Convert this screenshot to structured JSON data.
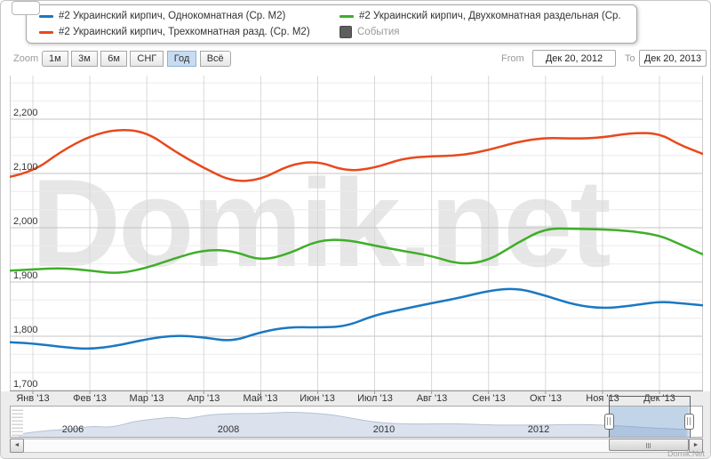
{
  "watermark": "Domik.net",
  "credit": "Domik.Net",
  "legend": {
    "items": [
      {
        "label": "#2 Украинский кирпич, Однокомнатная (Ср. М2)",
        "color": "#1a78c2",
        "type": "line"
      },
      {
        "label": "#2 Украинский кирпич, Двухкомнатная раздельная (Ср. М2)",
        "color": "#3fae29",
        "type": "line"
      },
      {
        "label": "#2 Украинский кирпич, Трехкомнатная разд. (Ср. М2)",
        "color": "#e8491c",
        "type": "line"
      },
      {
        "label": "События",
        "color": "#5e5e5e",
        "type": "box"
      }
    ]
  },
  "toolbar": {
    "zoom_label": "Zoom",
    "buttons": [
      "1м",
      "3м",
      "6м",
      "СНГ",
      "Год",
      "Всё"
    ],
    "selected_button": "Год",
    "from_label": "From",
    "from_value": "Дек 20, 2012",
    "to_label": "To",
    "to_value": "Дек 20, 2013"
  },
  "chart_data": {
    "type": "line",
    "title": "",
    "xlabel": "",
    "ylabel": "",
    "ylim": [
      1700,
      2280
    ],
    "grid": true,
    "legend_position": "top",
    "x_tick_labels": [
      "Янв '13",
      "Фев '13",
      "Мар '13",
      "Апр '13",
      "Май '13",
      "Июн '13",
      "Июл '13",
      "Авг '13",
      "Сен '13",
      "Окт '13",
      "Ноя '13",
      "Дек '13"
    ],
    "y_ticks": [
      {
        "value": 1700,
        "label": "1,700"
      },
      {
        "value": 1800,
        "label": "1,800"
      },
      {
        "value": 1900,
        "label": "1,900"
      },
      {
        "value": 2000,
        "label": "2,000"
      },
      {
        "value": 2100,
        "label": "2,100"
      },
      {
        "value": 2200,
        "label": "2,200"
      }
    ],
    "t_months": [
      -0.4,
      0,
      0.5,
      1,
      1.5,
      2,
      2.5,
      3,
      3.5,
      4,
      4.5,
      5,
      5.5,
      6,
      6.5,
      7,
      7.5,
      8,
      8.5,
      9,
      9.5,
      10,
      10.5,
      11,
      11.35,
      11.76
    ],
    "series": [
      {
        "name": "#2 Украинский кирпич, Однокомнатная (Ср. М2)",
        "color": "#1a78c2",
        "values": [
          1789,
          1787,
          1780,
          1776,
          1783,
          1795,
          1802,
          1798,
          1790,
          1808,
          1817,
          1816,
          1818,
          1839,
          1850,
          1861,
          1871,
          1884,
          1889,
          1875,
          1858,
          1851,
          1856,
          1864,
          1861,
          1857
        ]
      },
      {
        "name": "#2 Украинский кирпич, Двухкомнатная раздельная (Ср. М2)",
        "color": "#3fae29",
        "values": [
          1921,
          1923,
          1926,
          1921,
          1915,
          1926,
          1944,
          1959,
          1958,
          1939,
          1952,
          1977,
          1978,
          1967,
          1957,
          1948,
          1932,
          1939,
          1972,
          1999,
          1998,
          1997,
          1994,
          1986,
          1970,
          1951
        ]
      },
      {
        "name": "#2 Украинский кирпич, Трехкомнатная разд. (Ср. М2)",
        "color": "#e8491c",
        "values": [
          2094,
          2103,
          2141,
          2169,
          2182,
          2176,
          2140,
          2110,
          2085,
          2088,
          2116,
          2123,
          2104,
          2110,
          2128,
          2132,
          2133,
          2143,
          2158,
          2166,
          2164,
          2166,
          2175,
          2174,
          2153,
          2136
        ]
      }
    ],
    "navigator": {
      "year_ticks": [
        {
          "label": "2006",
          "year": 2006
        },
        {
          "label": "2008",
          "year": 2008
        },
        {
          "label": "2010",
          "year": 2010
        },
        {
          "label": "2012",
          "year": 2012
        }
      ],
      "years": [
        2005.3,
        2005.6,
        2006.0,
        2006.25,
        2006.5,
        2006.8,
        2007.1,
        2007.3,
        2007.45,
        2007.7,
        2008.0,
        2008.4,
        2008.85,
        2009.3,
        2009.55,
        2009.9,
        2010.35,
        2010.9,
        2011.4,
        2012.0,
        2012.5,
        2012.85,
        2013.2,
        2013.55,
        2013.9
      ],
      "levels": [
        0.07,
        0.21,
        0.28,
        0.41,
        0.34,
        0.62,
        0.72,
        0.79,
        0.69,
        0.86,
        0.93,
        0.93,
        1.0,
        0.9,
        0.76,
        0.55,
        0.48,
        0.52,
        0.45,
        0.45,
        0.48,
        0.45,
        0.38,
        0.31,
        0.27
      ],
      "selection": {
        "from_year": 2012.9,
        "to_year": 2013.93
      }
    }
  }
}
